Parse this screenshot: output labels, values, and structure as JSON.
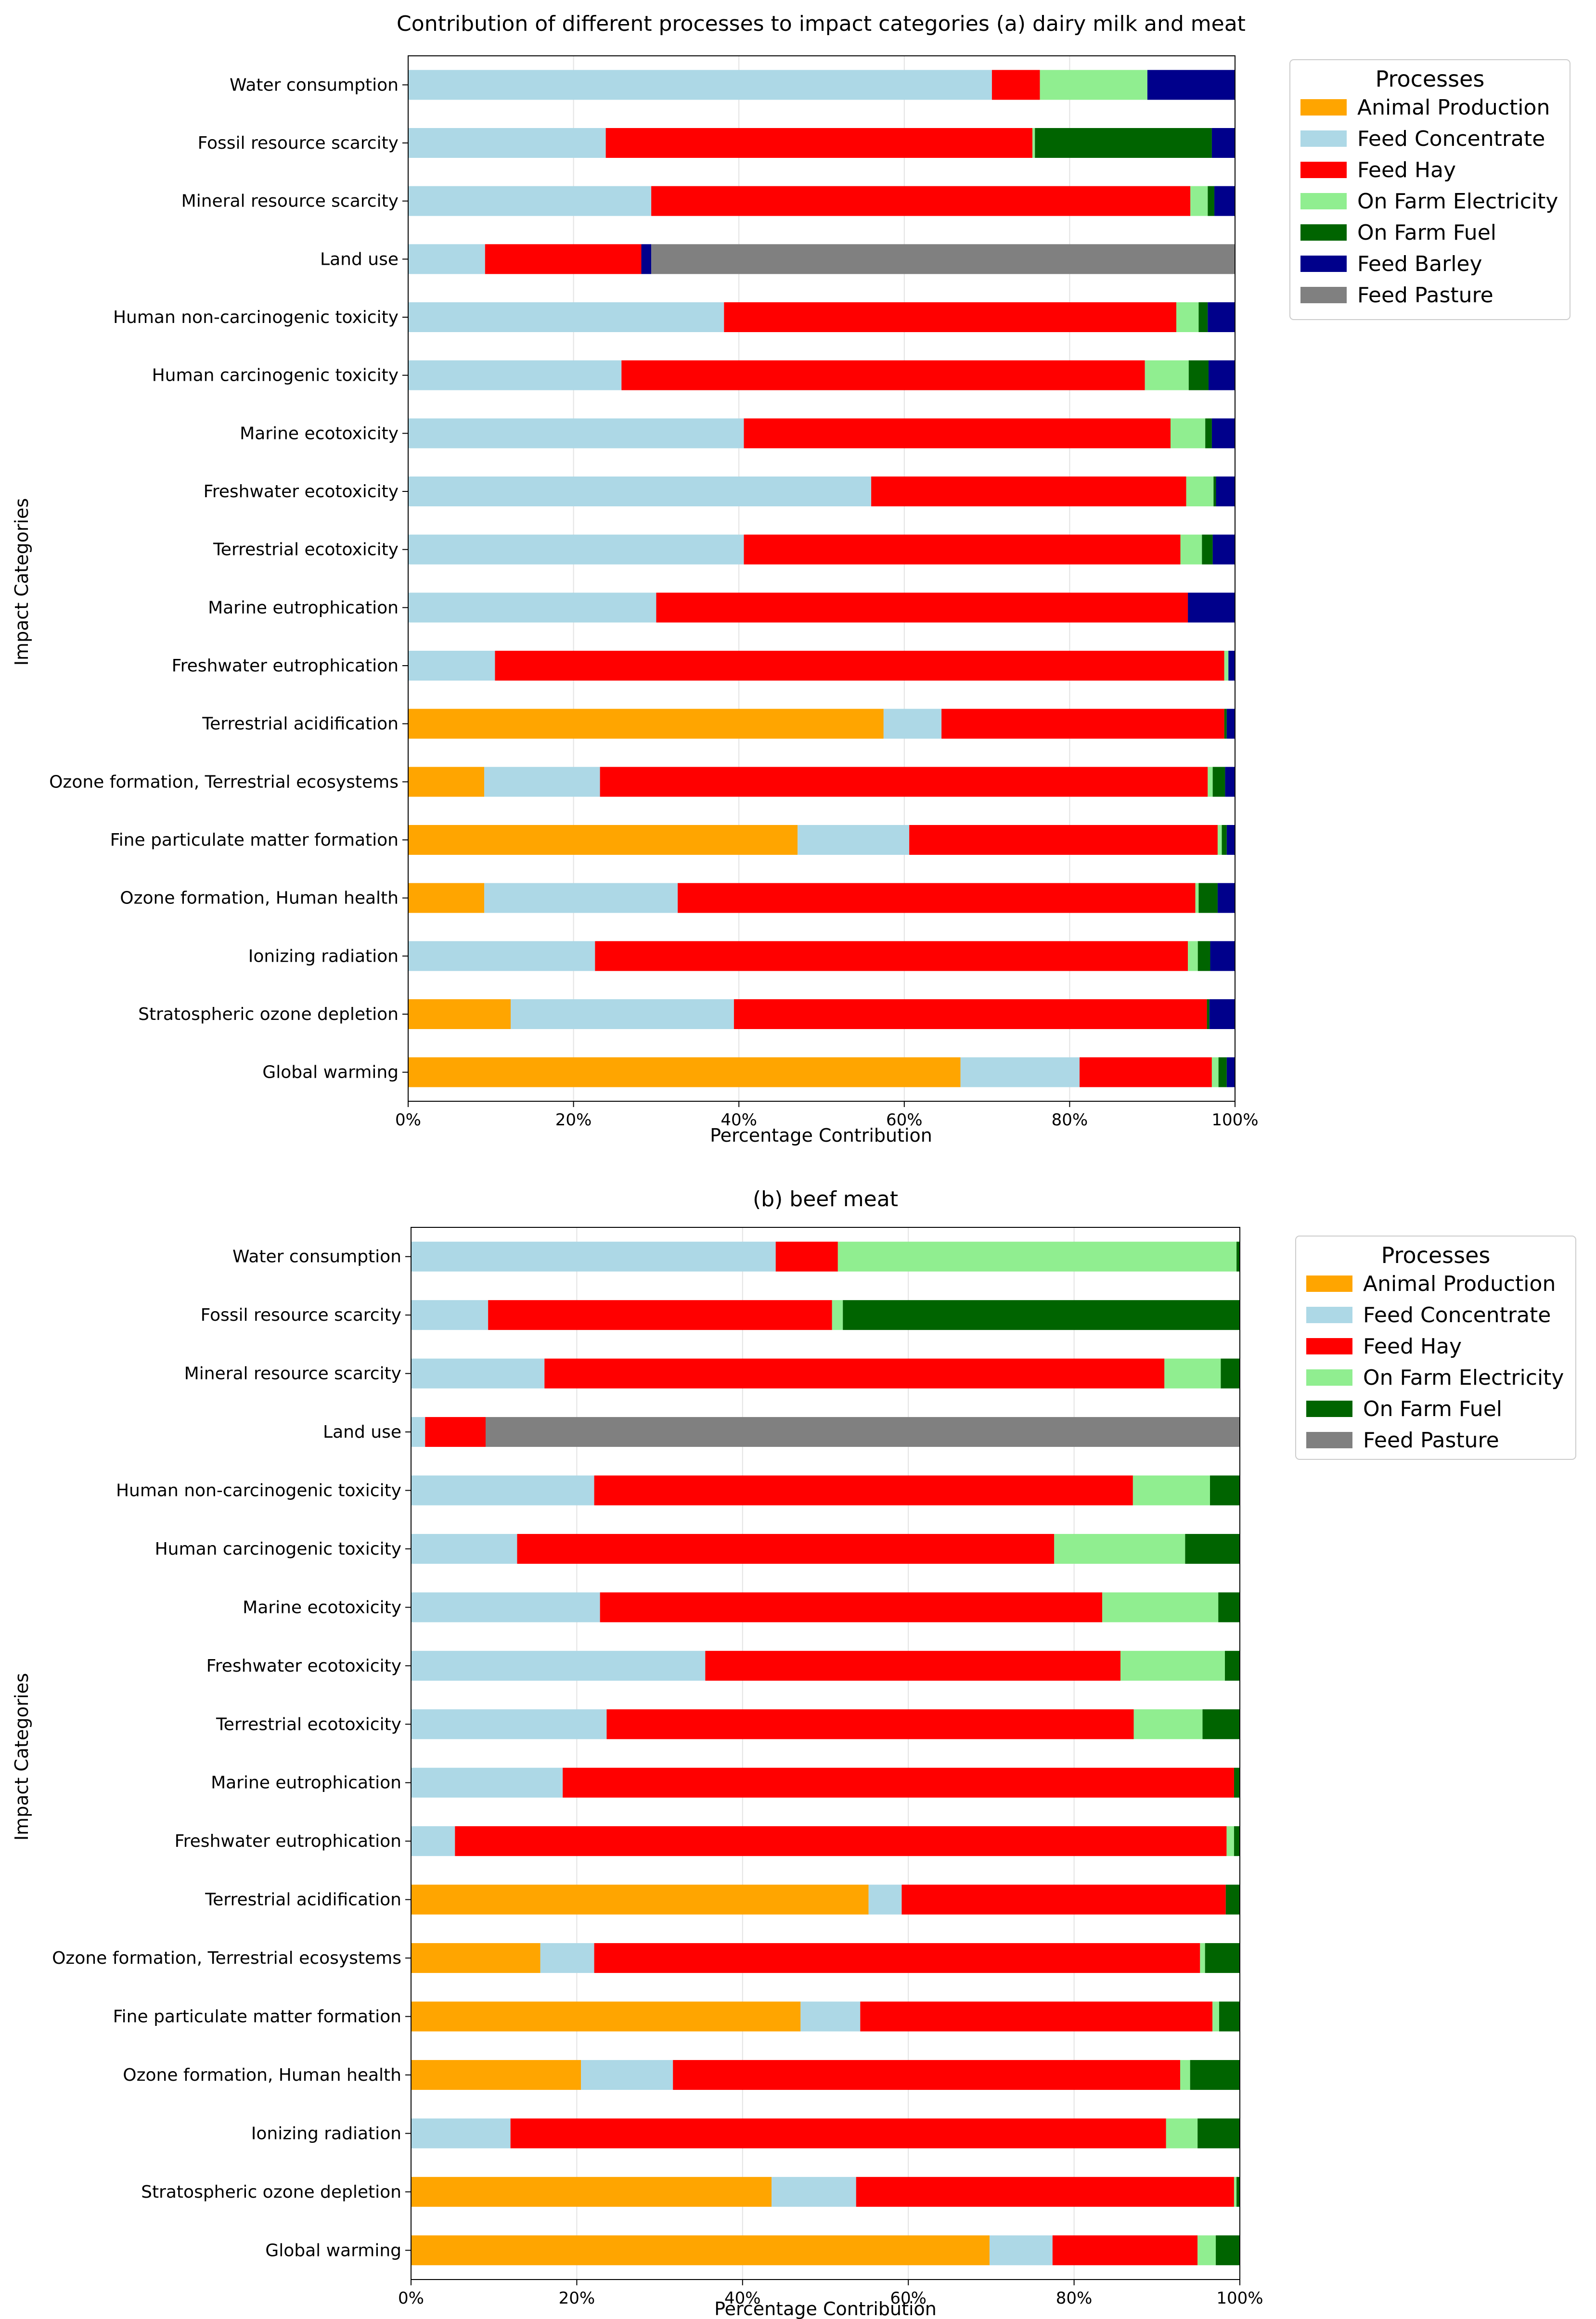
{
  "colors": {
    "Animal Production": "#ffa500",
    "Feed Concentrate": "#add8e6",
    "Feed Hay": "#ff0000",
    "On Farm Electricity": "#90ee90",
    "On Farm Fuel": "#006400",
    "Feed Barley": "#00008b",
    "Feed Pasture": "#808080"
  },
  "chart_data": [
    {
      "type": "bar",
      "orientation": "horizontal",
      "stacked": true,
      "title": "Contribution of different processes to impact categories (a) dairy milk and meat",
      "xlabel": "Percentage Contribution",
      "ylabel": "Impact Categories",
      "xlim": [
        0,
        100
      ],
      "xticks": [
        "0%",
        "20%",
        "40%",
        "60%",
        "80%",
        "100%"
      ],
      "grid": "x",
      "legend_title": "Processes",
      "legend_position": "outside-right",
      "categories": [
        "Water consumption",
        "Fossil resource scarcity",
        "Mineral resource scarcity",
        "Land use",
        "Human non-carcinogenic toxicity",
        "Human carcinogenic toxicity",
        "Marine ecotoxicity",
        "Freshwater ecotoxicity",
        "Terrestrial ecotoxicity",
        "Marine eutrophication",
        "Freshwater eutrophication",
        "Terrestrial acidification",
        "Ozone formation, Terrestrial ecosystems",
        "Fine particulate matter formation",
        "Ozone formation, Human health",
        "Ionizing radiation",
        "Stratospheric ozone depletion",
        "Global warming"
      ],
      "series": [
        {
          "name": "Animal Production",
          "values": [
            0,
            0,
            0,
            0,
            0,
            0,
            0,
            0,
            0,
            0,
            0,
            57.5,
            9.2,
            47.1,
            9.2,
            0,
            12.4,
            66.8
          ]
        },
        {
          "name": "Feed Concentrate",
          "values": [
            70.6,
            23.9,
            29.4,
            9.3,
            38.2,
            25.8,
            40.6,
            56.0,
            40.6,
            30.0,
            10.5,
            7.0,
            14.0,
            13.5,
            23.4,
            22.6,
            27.0,
            14.4
          ]
        },
        {
          "name": "Feed Hay",
          "values": [
            5.8,
            51.6,
            65.2,
            18.9,
            54.7,
            63.3,
            51.6,
            38.1,
            52.8,
            64.3,
            88.2,
            34.2,
            73.5,
            37.3,
            62.6,
            71.7,
            57.2,
            16.0
          ]
        },
        {
          "name": "On Farm Electricity",
          "values": [
            13.0,
            0.3,
            2.1,
            0,
            2.7,
            5.3,
            4.2,
            3.3,
            2.6,
            0,
            0.5,
            0,
            0.6,
            0.5,
            0.4,
            1.2,
            0,
            0.8
          ]
        },
        {
          "name": "On Farm Fuel",
          "values": [
            0,
            21.4,
            0.8,
            0,
            1.1,
            2.4,
            0.8,
            0.3,
            1.3,
            0,
            0,
            0.3,
            1.5,
            0.6,
            2.3,
            1.5,
            0.3,
            1.0
          ]
        },
        {
          "name": "Feed Barley",
          "values": [
            10.6,
            2.8,
            2.5,
            1.2,
            3.3,
            3.2,
            2.8,
            2.3,
            2.7,
            5.7,
            0.8,
            1.0,
            1.2,
            1.0,
            2.1,
            3.0,
            3.1,
            1.0
          ]
        },
        {
          "name": "Feed Pasture",
          "values": [
            0,
            0,
            0,
            70.6,
            0,
            0,
            0,
            0,
            0,
            0,
            0,
            0,
            0,
            0,
            0,
            0,
            0,
            0
          ]
        }
      ]
    },
    {
      "type": "bar",
      "orientation": "horizontal",
      "stacked": true,
      "title": "(b) beef meat",
      "xlabel": "Percentage Contribution",
      "ylabel": "Impact Categories",
      "xlim": [
        0,
        100
      ],
      "xticks": [
        "0%",
        "20%",
        "40%",
        "60%",
        "80%",
        "100%"
      ],
      "grid": "x",
      "legend_title": "Processes",
      "legend_position": "outside-right",
      "categories": [
        "Water consumption",
        "Fossil resource scarcity",
        "Mineral resource scarcity",
        "Land use",
        "Human non-carcinogenic toxicity",
        "Human carcinogenic toxicity",
        "Marine ecotoxicity",
        "Freshwater ecotoxicity",
        "Terrestrial ecotoxicity",
        "Marine eutrophication",
        "Freshwater eutrophication",
        "Terrestrial acidification",
        "Ozone formation, Terrestrial ecosystems",
        "Fine particulate matter formation",
        "Ozone formation, Human health",
        "Ionizing radiation",
        "Stratospheric ozone depletion",
        "Global warming"
      ],
      "series": [
        {
          "name": "Animal Production",
          "values": [
            0,
            0,
            0,
            0,
            0,
            0,
            0,
            0,
            0,
            0,
            0,
            55.2,
            15.6,
            47.0,
            20.5,
            0,
            43.5,
            69.8
          ]
        },
        {
          "name": "Feed Concentrate",
          "values": [
            44.0,
            9.3,
            16.1,
            1.7,
            22.1,
            12.8,
            22.8,
            35.5,
            23.6,
            18.3,
            5.3,
            4.0,
            6.5,
            7.2,
            11.1,
            12.0,
            10.2,
            7.6
          ]
        },
        {
          "name": "Feed Hay",
          "values": [
            7.5,
            41.5,
            74.8,
            7.3,
            65.0,
            64.8,
            60.6,
            50.1,
            63.6,
            81.0,
            93.1,
            39.1,
            73.1,
            42.5,
            61.2,
            79.1,
            45.6,
            17.5
          ]
        },
        {
          "name": "On Farm Electricity",
          "values": [
            48.1,
            1.3,
            6.8,
            0,
            9.3,
            15.8,
            14.0,
            12.6,
            8.3,
            0,
            0.9,
            0,
            0.6,
            0.8,
            1.2,
            3.8,
            0.3,
            2.2
          ]
        },
        {
          "name": "On Farm Fuel",
          "values": [
            0.4,
            47.9,
            2.3,
            0,
            3.6,
            6.6,
            2.6,
            1.8,
            4.5,
            0.7,
            0.7,
            1.7,
            4.2,
            2.5,
            6.0,
            5.1,
            0.4,
            2.9
          ]
        },
        {
          "name": "Feed Pasture",
          "values": [
            0,
            0,
            0,
            91.0,
            0,
            0,
            0,
            0,
            0,
            0,
            0,
            0,
            0,
            0,
            0,
            0,
            0,
            0
          ]
        }
      ]
    }
  ]
}
